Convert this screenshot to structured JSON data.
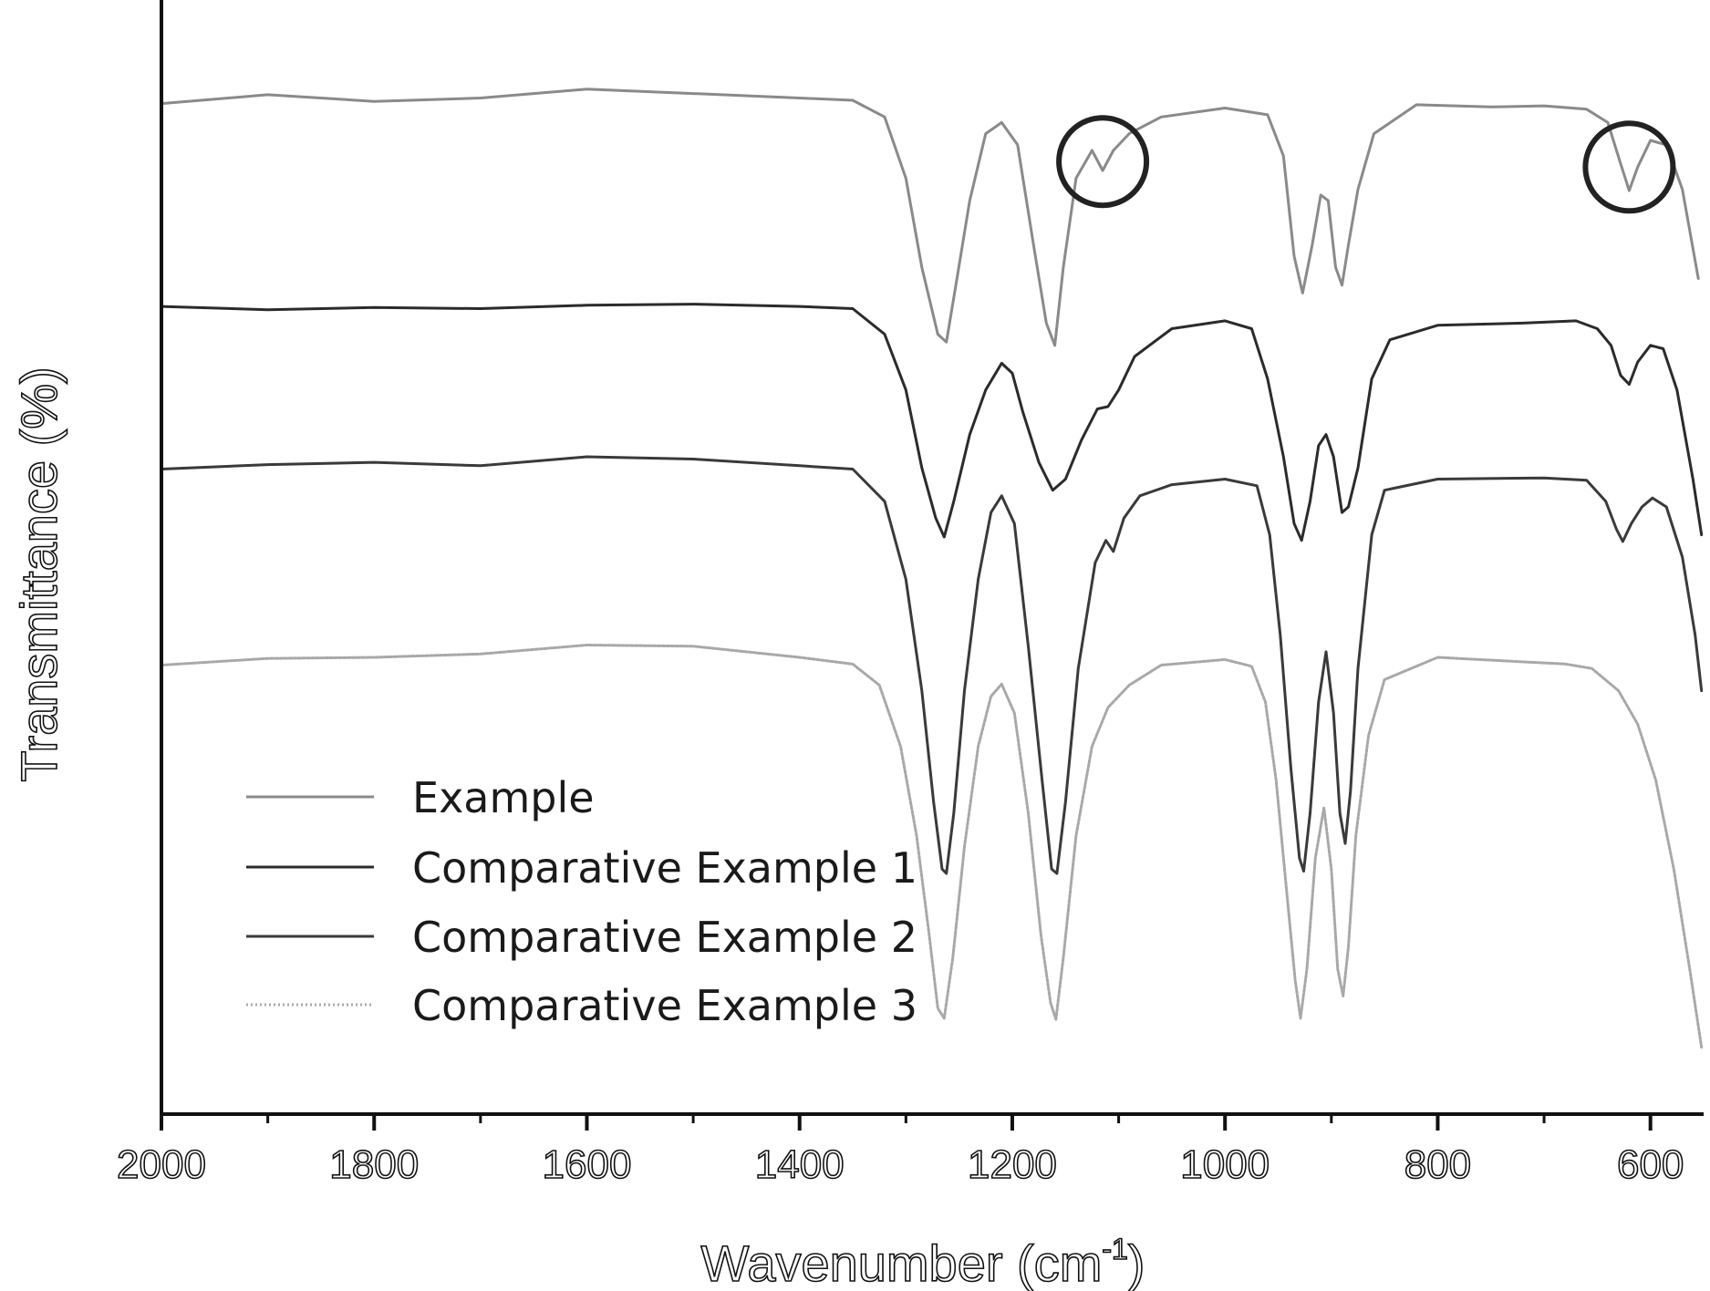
{
  "chart_data": {
    "type": "line",
    "title": "",
    "xlabel": "Wavenumber (cm",
    "xlabel_sup": "-1",
    "xlabel_close": ")",
    "ylabel": "Transmittance (%)",
    "xlim": [
      2000,
      550
    ],
    "x_reversed": true,
    "ylim": [
      0,
      100
    ],
    "y_ticks_shown": false,
    "grid": false,
    "legend_position": "bottom-left",
    "x_ticks": [
      2000,
      1800,
      1600,
      1400,
      1200,
      1000,
      800,
      600
    ],
    "x_tick_labels": [
      "2000",
      "1800",
      "1600",
      "1400",
      "1200",
      "1000",
      "800",
      "600"
    ],
    "annotations": [
      {
        "type": "circle",
        "x": 1115,
        "y": 85.5,
        "series": "Example"
      },
      {
        "type": "circle",
        "x": 620,
        "y": 85,
        "series": "Example"
      }
    ],
    "series": [
      {
        "name": "Example",
        "color": "#8a8a8a",
        "points": [
          [
            2000,
            90.7
          ],
          [
            1900,
            91.5
          ],
          [
            1800,
            90.9
          ],
          [
            1700,
            91.2
          ],
          [
            1600,
            92.0
          ],
          [
            1500,
            91.6
          ],
          [
            1400,
            91.2
          ],
          [
            1350,
            91.0
          ],
          [
            1320,
            89.5
          ],
          [
            1300,
            84
          ],
          [
            1285,
            76
          ],
          [
            1270,
            70
          ],
          [
            1262,
            69.3
          ],
          [
            1252,
            75
          ],
          [
            1240,
            82
          ],
          [
            1225,
            88
          ],
          [
            1210,
            89
          ],
          [
            1195,
            87
          ],
          [
            1180,
            78
          ],
          [
            1168,
            71
          ],
          [
            1160,
            69
          ],
          [
            1152,
            76
          ],
          [
            1140,
            84
          ],
          [
            1125,
            86.5
          ],
          [
            1115,
            84.7
          ],
          [
            1105,
            86.5
          ],
          [
            1090,
            88
          ],
          [
            1060,
            89.5
          ],
          [
            1000,
            90.3
          ],
          [
            960,
            89.7
          ],
          [
            945,
            86
          ],
          [
            935,
            77
          ],
          [
            927,
            73.7
          ],
          [
            918,
            78
          ],
          [
            910,
            82.5
          ],
          [
            903,
            82
          ],
          [
            896,
            76
          ],
          [
            890,
            74.4
          ],
          [
            884,
            78
          ],
          [
            875,
            83
          ],
          [
            860,
            88
          ],
          [
            820,
            90.6
          ],
          [
            750,
            90.4
          ],
          [
            700,
            90.5
          ],
          [
            660,
            90.2
          ],
          [
            640,
            89
          ],
          [
            628,
            85.3
          ],
          [
            620,
            82.9
          ],
          [
            612,
            85
          ],
          [
            600,
            87.4
          ],
          [
            585,
            87
          ],
          [
            570,
            83
          ],
          [
            555,
            75
          ]
        ]
      },
      {
        "name": "Comparative Example 1",
        "color": "#2b2b2b",
        "points": [
          [
            2000,
            72.5
          ],
          [
            1900,
            72.2
          ],
          [
            1800,
            72.4
          ],
          [
            1700,
            72.3
          ],
          [
            1600,
            72.6
          ],
          [
            1500,
            72.7
          ],
          [
            1400,
            72.5
          ],
          [
            1350,
            72.3
          ],
          [
            1320,
            70
          ],
          [
            1300,
            65
          ],
          [
            1285,
            58
          ],
          [
            1272,
            53.5
          ],
          [
            1264,
            51.8
          ],
          [
            1255,
            55
          ],
          [
            1240,
            61
          ],
          [
            1225,
            65
          ],
          [
            1210,
            67.4
          ],
          [
            1200,
            66.5
          ],
          [
            1190,
            63
          ],
          [
            1175,
            58.5
          ],
          [
            1162,
            56
          ],
          [
            1150,
            57
          ],
          [
            1135,
            60.5
          ],
          [
            1120,
            63.3
          ],
          [
            1110,
            63.5
          ],
          [
            1100,
            65
          ],
          [
            1085,
            68
          ],
          [
            1050,
            70.5
          ],
          [
            1000,
            71.2
          ],
          [
            975,
            70.5
          ],
          [
            960,
            66
          ],
          [
            945,
            59
          ],
          [
            935,
            53
          ],
          [
            928,
            51.5
          ],
          [
            920,
            55
          ],
          [
            912,
            60
          ],
          [
            905,
            61
          ],
          [
            898,
            59
          ],
          [
            890,
            54
          ],
          [
            884,
            54.5
          ],
          [
            875,
            58
          ],
          [
            862,
            66
          ],
          [
            845,
            69.5
          ],
          [
            800,
            70.8
          ],
          [
            720,
            71.0
          ],
          [
            670,
            71.2
          ],
          [
            650,
            70.5
          ],
          [
            637,
            69
          ],
          [
            628,
            66.3
          ],
          [
            620,
            65.5
          ],
          [
            612,
            67.5
          ],
          [
            600,
            69.0
          ],
          [
            588,
            68.7
          ],
          [
            575,
            65
          ],
          [
            560,
            57
          ],
          [
            552,
            52
          ]
        ]
      },
      {
        "name": "Comparative Example 2",
        "color": "#3a3a3a",
        "points": [
          [
            2000,
            57.9
          ],
          [
            1900,
            58.3
          ],
          [
            1800,
            58.5
          ],
          [
            1700,
            58.2
          ],
          [
            1600,
            59.0
          ],
          [
            1500,
            58.8
          ],
          [
            1400,
            58.2
          ],
          [
            1350,
            57.9
          ],
          [
            1320,
            55
          ],
          [
            1300,
            48
          ],
          [
            1285,
            38
          ],
          [
            1274,
            28
          ],
          [
            1266,
            22
          ],
          [
            1262,
            21.6
          ],
          [
            1255,
            27
          ],
          [
            1245,
            38
          ],
          [
            1232,
            48
          ],
          [
            1220,
            54
          ],
          [
            1210,
            55.5
          ],
          [
            1198,
            53
          ],
          [
            1185,
            42
          ],
          [
            1172,
            30
          ],
          [
            1163,
            22
          ],
          [
            1158,
            21.6
          ],
          [
            1150,
            28
          ],
          [
            1138,
            40
          ],
          [
            1122,
            49.5
          ],
          [
            1112,
            51.5
          ],
          [
            1105,
            50.5
          ],
          [
            1095,
            53.5
          ],
          [
            1080,
            55.5
          ],
          [
            1050,
            56.5
          ],
          [
            1000,
            57.0
          ],
          [
            970,
            56.4
          ],
          [
            958,
            52
          ],
          [
            948,
            43
          ],
          [
            938,
            31
          ],
          [
            930,
            23
          ],
          [
            926,
            21.8
          ],
          [
            920,
            27
          ],
          [
            912,
            37
          ],
          [
            905,
            41.5
          ],
          [
            898,
            36
          ],
          [
            892,
            27
          ],
          [
            887,
            24.3
          ],
          [
            882,
            29
          ],
          [
            875,
            40
          ],
          [
            862,
            52
          ],
          [
            850,
            56
          ],
          [
            800,
            57.0
          ],
          [
            700,
            57.1
          ],
          [
            660,
            56.9
          ],
          [
            642,
            55
          ],
          [
            632,
            52.5
          ],
          [
            626,
            51.4
          ],
          [
            618,
            53
          ],
          [
            608,
            54.5
          ],
          [
            598,
            55.3
          ],
          [
            585,
            54.5
          ],
          [
            570,
            50
          ],
          [
            558,
            43
          ],
          [
            552,
            38
          ]
        ]
      },
      {
        "name": "Comparative Example 3",
        "color": "#a8a8a8",
        "points": [
          [
            2000,
            40.3
          ],
          [
            1900,
            40.9
          ],
          [
            1800,
            41.0
          ],
          [
            1700,
            41.3
          ],
          [
            1600,
            42.1
          ],
          [
            1500,
            42.0
          ],
          [
            1400,
            41.0
          ],
          [
            1350,
            40.4
          ],
          [
            1325,
            38.5
          ],
          [
            1305,
            33
          ],
          [
            1290,
            25
          ],
          [
            1278,
            16
          ],
          [
            1270,
            9.5
          ],
          [
            1264,
            8.6
          ],
          [
            1256,
            14
          ],
          [
            1245,
            24
          ],
          [
            1232,
            33
          ],
          [
            1220,
            37.5
          ],
          [
            1210,
            38.6
          ],
          [
            1198,
            36
          ],
          [
            1185,
            27
          ],
          [
            1173,
            16
          ],
          [
            1164,
            10
          ],
          [
            1159,
            8.5
          ],
          [
            1152,
            14
          ],
          [
            1140,
            25
          ],
          [
            1125,
            33
          ],
          [
            1110,
            36.5
          ],
          [
            1090,
            38.5
          ],
          [
            1060,
            40.3
          ],
          [
            1000,
            40.8
          ],
          [
            975,
            40.2
          ],
          [
            962,
            37
          ],
          [
            952,
            30
          ],
          [
            942,
            20
          ],
          [
            934,
            12
          ],
          [
            929,
            8.6
          ],
          [
            923,
            13
          ],
          [
            915,
            23
          ],
          [
            907,
            27.5
          ],
          [
            900,
            22
          ],
          [
            894,
            13
          ],
          [
            889,
            10.6
          ],
          [
            884,
            15
          ],
          [
            877,
            25
          ],
          [
            865,
            34
          ],
          [
            850,
            39
          ],
          [
            800,
            41.0
          ],
          [
            720,
            40.6
          ],
          [
            680,
            40.4
          ],
          [
            655,
            40.0
          ],
          [
            630,
            38
          ],
          [
            612,
            35
          ],
          [
            595,
            30
          ],
          [
            578,
            22
          ],
          [
            563,
            13
          ],
          [
            552,
            6
          ]
        ]
      }
    ]
  },
  "legend": {
    "items": [
      {
        "label": "Example",
        "color": "#8a8a8a"
      },
      {
        "label": "Comparative Example 1",
        "color": "#2b2b2b"
      },
      {
        "label": "Comparative Example 2",
        "color": "#3a3a3a"
      },
      {
        "label": "Comparative Example 3",
        "color": "#a8a8a8"
      }
    ]
  }
}
